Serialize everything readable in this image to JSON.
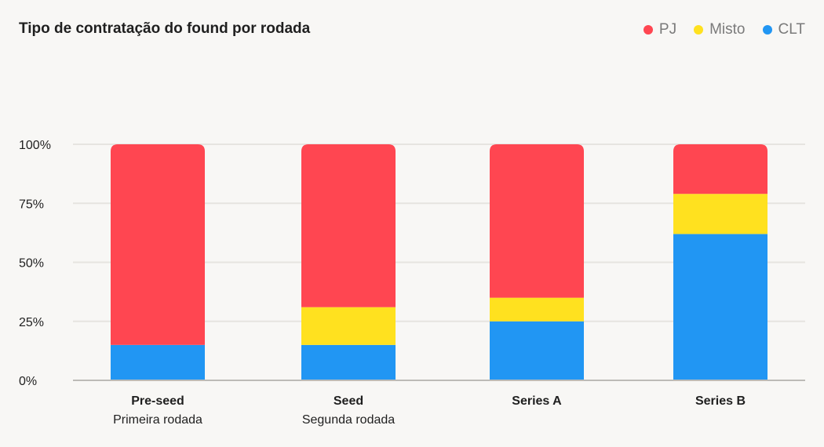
{
  "chart_data": {
    "type": "bar",
    "stacked": true,
    "title": "Tipo de contratação do found por rodada",
    "categories": [
      "Pre-seed",
      "Seed",
      "Series A",
      "Series B"
    ],
    "category_subtitles": [
      "Primeira rodada",
      "Segunda rodada",
      "",
      ""
    ],
    "series": [
      {
        "name": "CLT",
        "color": "#2196f3",
        "values": [
          15,
          15,
          25,
          62
        ]
      },
      {
        "name": "Misto",
        "color": "#ffe11f",
        "values": [
          0,
          16,
          10,
          17
        ]
      },
      {
        "name": "PJ",
        "color": "#ff4651",
        "values": [
          85,
          69,
          65,
          21
        ]
      }
    ],
    "legend_order": [
      "PJ",
      "Misto",
      "CLT"
    ],
    "legend_position": "top-right",
    "ylim": [
      0,
      100
    ],
    "yticks": [
      "0%",
      "25%",
      "50%",
      "75%",
      "100%"
    ],
    "grid": true
  }
}
